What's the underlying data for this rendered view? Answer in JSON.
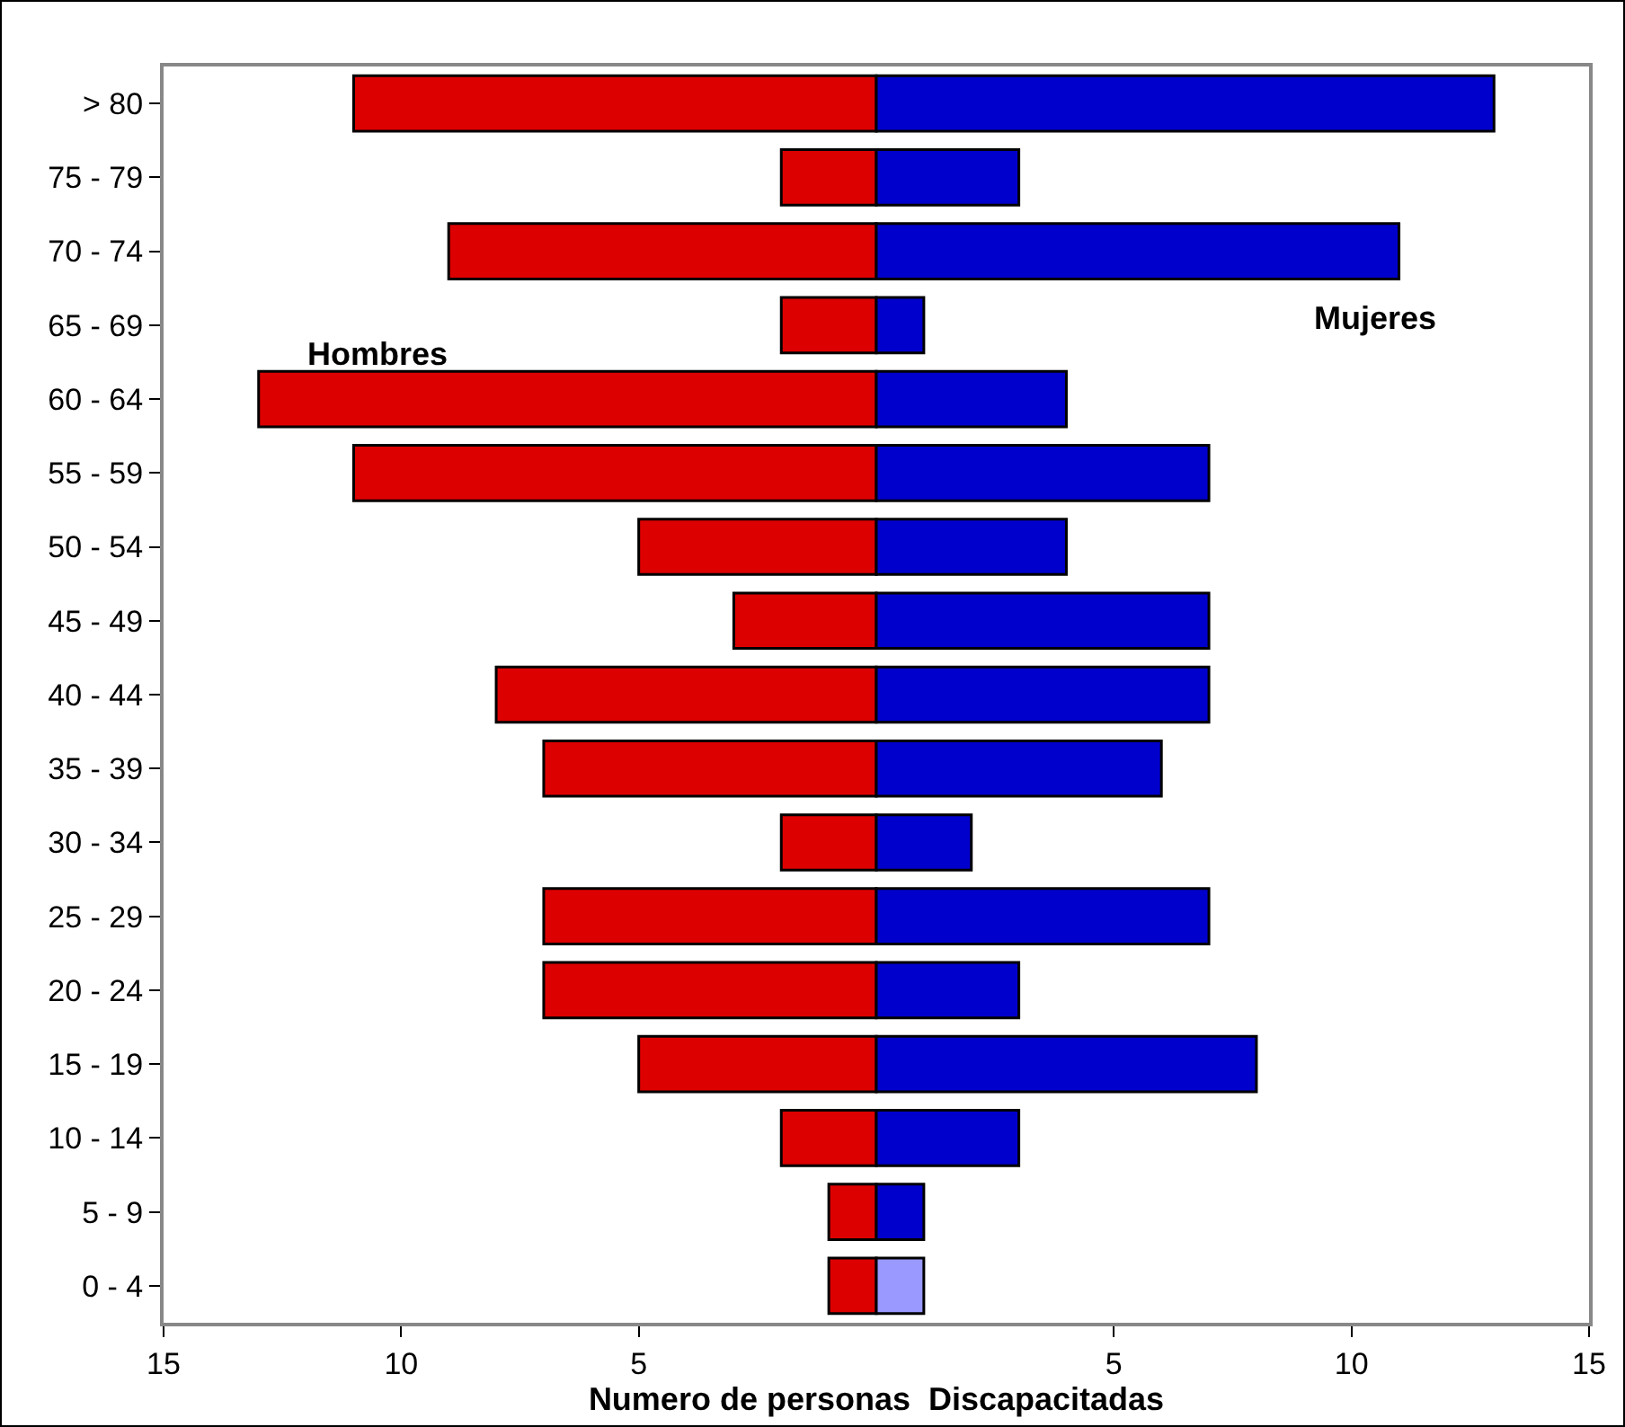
{
  "chart_data": {
    "type": "bar",
    "orientation": "horizontal",
    "xlabel": "Numero de personas  Discapacitadas",
    "categories": [
      "> 80",
      "75 - 79",
      "70 - 74",
      "65 - 69",
      "60 - 64",
      "55 - 59",
      "50 - 54",
      "45 - 49",
      "40 - 44",
      "35 - 39",
      "30 - 34",
      "25 - 29",
      "20 - 24",
      "15 - 19",
      "10 - 14",
      "5 - 9",
      "0 - 4"
    ],
    "series": [
      {
        "name": "Hombres",
        "color": "#dd0000",
        "values": [
          -11,
          -2,
          -9,
          -2,
          -13,
          -11,
          -5,
          -3,
          -8,
          -7,
          -2,
          -7,
          -7,
          -5,
          -2,
          -1,
          -1
        ]
      },
      {
        "name": "Mujeres",
        "colors": [
          "#0000cc",
          "#0000cc",
          "#0000cc",
          "#0000cc",
          "#0000cc",
          "#0000cc",
          "#0000cc",
          "#0000cc",
          "#0000cc",
          "#0000cc",
          "#0000cc",
          "#0000cc",
          "#0000cc",
          "#0000cc",
          "#0000cc",
          "#0000cc",
          "#9999ff"
        ],
        "values": [
          13,
          3,
          11,
          1,
          4,
          7,
          4,
          7,
          7,
          6,
          2,
          7,
          3,
          8,
          3,
          1,
          1
        ]
      }
    ],
    "xlim": [
      -15,
      15
    ],
    "xticks": [
      {
        "value": -15,
        "label": "15"
      },
      {
        "value": -10,
        "label": "10"
      },
      {
        "value": -5,
        "label": "5"
      },
      {
        "value": 5,
        "label": "5"
      },
      {
        "value": 10,
        "label": "10"
      },
      {
        "value": 15,
        "label": "15"
      }
    ],
    "stacked": true,
    "grid": false,
    "legend": false
  }
}
